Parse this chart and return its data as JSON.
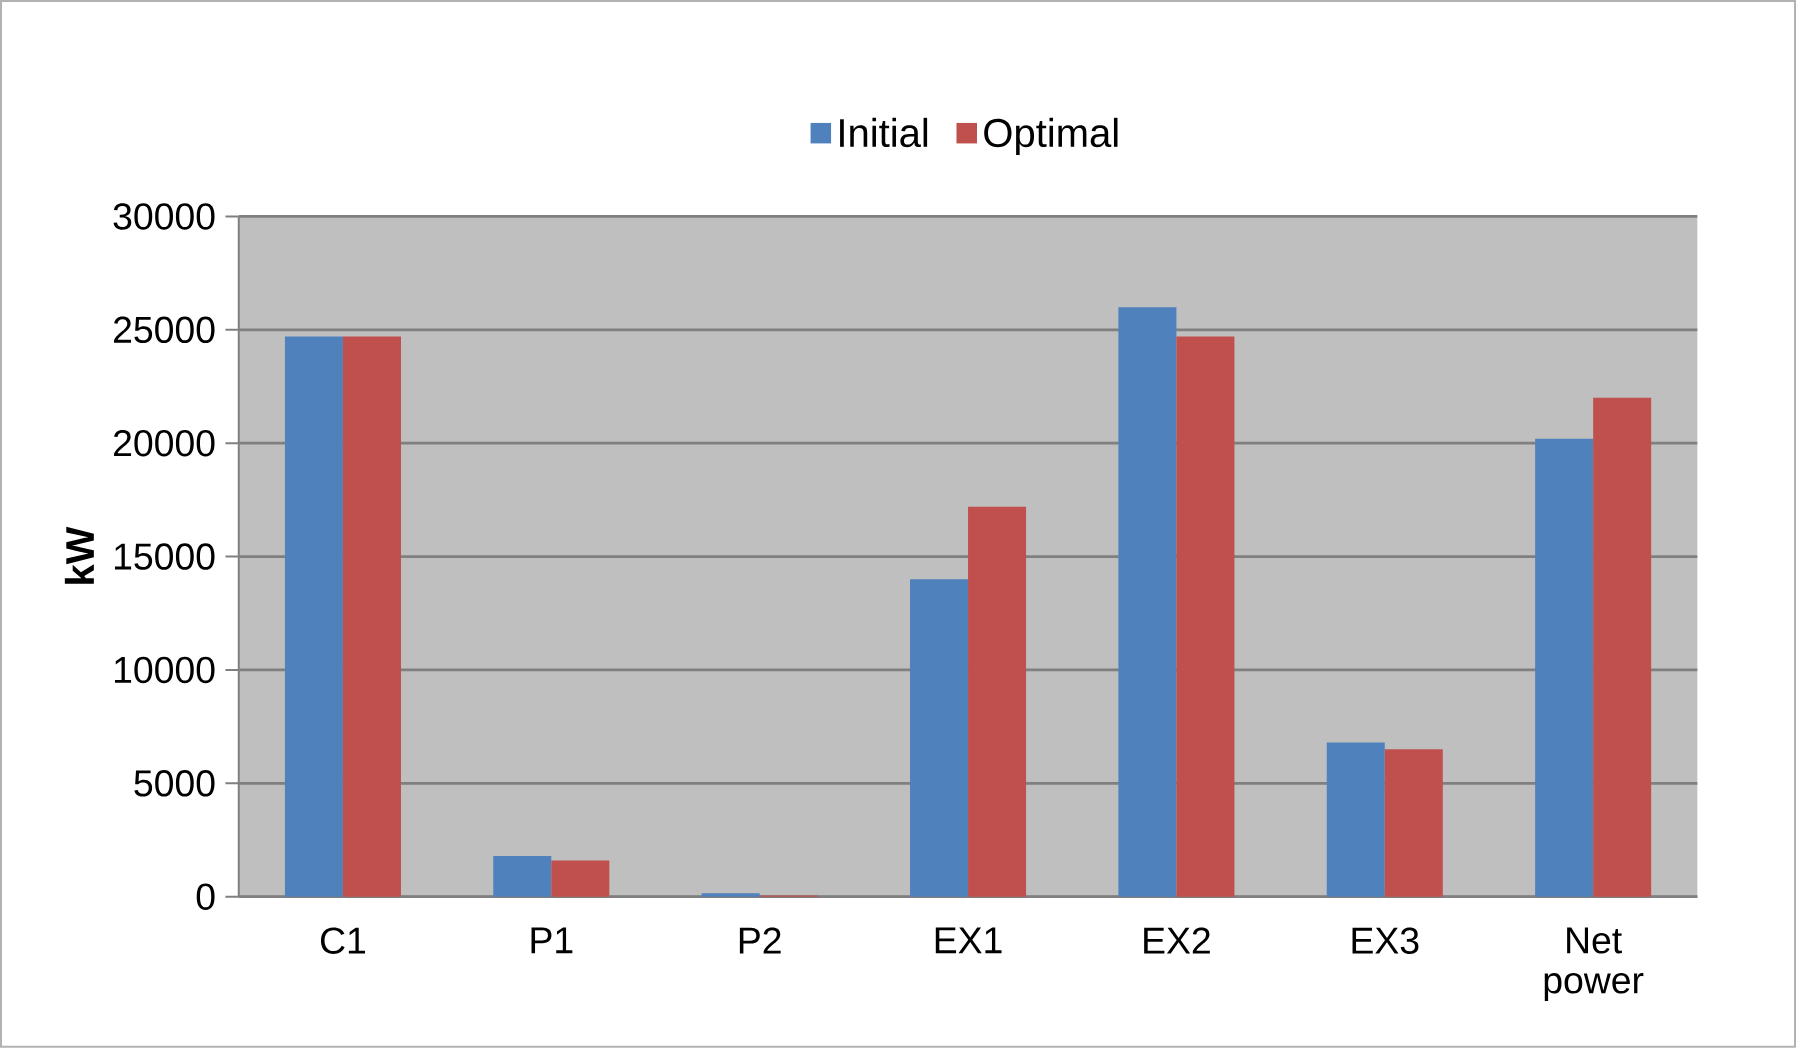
{
  "chart_data": {
    "type": "bar",
    "ylabel": "kW",
    "categories": [
      "C1",
      "P1",
      "P2",
      "EX1",
      "EX2",
      "EX3",
      "Net power"
    ],
    "series": [
      {
        "name": "Initial",
        "color": "#4f81bd",
        "values": [
          24700,
          1800,
          150,
          14000,
          26000,
          6800,
          20200
        ]
      },
      {
        "name": "Optimal",
        "color": "#c0504d",
        "values": [
          24700,
          1600,
          50,
          17200,
          24700,
          6500,
          22000
        ]
      }
    ],
    "ylim": [
      0,
      30000
    ],
    "yticks": [
      0,
      5000,
      10000,
      15000,
      20000,
      25000,
      30000
    ],
    "grid": "y",
    "legend": "top"
  }
}
